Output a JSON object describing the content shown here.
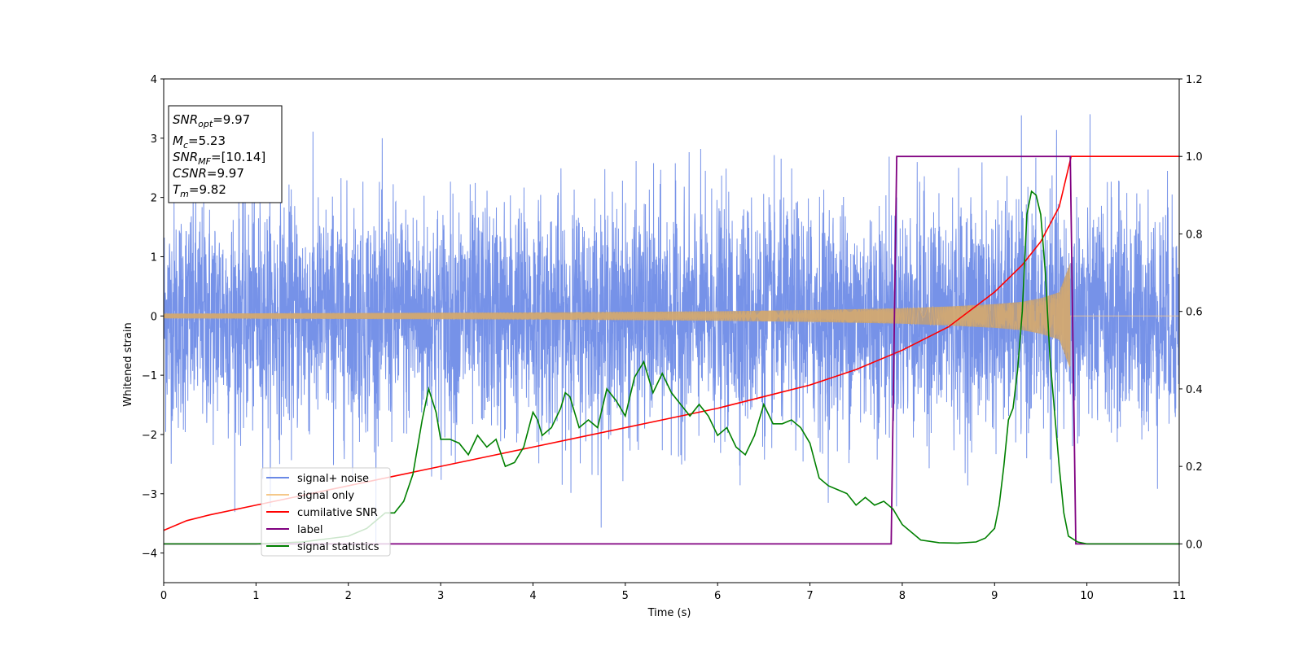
{
  "chart_data": {
    "type": "line",
    "xlabel": "Time (s)",
    "ylabel": "Whitened strain",
    "xlim": [
      0,
      11
    ],
    "ylim_left": [
      -4.5,
      4
    ],
    "ylim_right": [
      -0.1,
      1.2
    ],
    "x_ticks": [
      "0",
      "1",
      "2",
      "3",
      "4",
      "5",
      "6",
      "7",
      "8",
      "9",
      "10",
      "11"
    ],
    "y_left_ticks": [
      "−4",
      "−3",
      "−2",
      "−1",
      "0",
      "1",
      "2",
      "3",
      "4"
    ],
    "y_right_ticks": [
      "0.0",
      "0.2",
      "0.4",
      "0.6",
      "0.8",
      "1.0",
      "1.2"
    ],
    "annotation": {
      "snr_opt": {
        "label": "SNR",
        "sub": "opt",
        "value": "=9.97"
      },
      "mc": {
        "label": "M",
        "sub": "c",
        "value": "=5.23"
      },
      "snr_mf": {
        "label": "SNR",
        "sub": "MF",
        "value": "=[10.14]"
      },
      "csnr": {
        "label": "CSNR",
        "value": "=9.97"
      },
      "tm": {
        "label": "T",
        "sub": "m",
        "value": "=9.82"
      }
    },
    "series": [
      {
        "name": "signal+ noise",
        "axis": "left",
        "color": "#6a89e6",
        "description_values": {
          "mean": 0,
          "noise_sd": 0.95,
          "x_range": [
            0,
            11
          ]
        }
      },
      {
        "name": "signal only",
        "axis": "left",
        "color": "#f5c88a",
        "envelope": {
          "x": [
            0,
            1,
            2,
            3,
            4,
            5,
            6,
            7,
            8,
            8.5,
            9,
            9.3,
            9.5,
            9.7,
            9.82
          ],
          "amp": [
            0.04,
            0.045,
            0.05,
            0.055,
            0.06,
            0.07,
            0.08,
            0.1,
            0.13,
            0.16,
            0.2,
            0.24,
            0.3,
            0.4,
            0.9
          ]
        }
      },
      {
        "name": "cumilative SNR",
        "axis": "right",
        "color": "#ff0000",
        "x": [
          0,
          0.25,
          0.5,
          1,
          1.5,
          2,
          2.5,
          3,
          3.5,
          4,
          4.5,
          5,
          5.5,
          6,
          6.5,
          7,
          7.5,
          8,
          8.5,
          9,
          9.3,
          9.5,
          9.7,
          9.82,
          9.83,
          11
        ],
        "values": [
          0.035,
          0.06,
          0.075,
          0.1,
          0.125,
          0.15,
          0.175,
          0.2,
          0.225,
          0.25,
          0.275,
          0.3,
          0.325,
          0.35,
          0.38,
          0.41,
          0.45,
          0.5,
          0.56,
          0.65,
          0.72,
          0.78,
          0.87,
          0.99,
          1.0,
          1.0
        ]
      },
      {
        "name": "label",
        "axis": "right",
        "color": "#800080",
        "x": [
          0,
          7.88,
          7.94,
          9.82,
          9.88,
          11
        ],
        "values": [
          0,
          0,
          1,
          1,
          0,
          0
        ]
      },
      {
        "name": "signal statistics",
        "axis": "right",
        "color": "#008000",
        "x": [
          0,
          0.5,
          1,
          1.5,
          2,
          2.2,
          2.4,
          2.5,
          2.6,
          2.7,
          2.8,
          2.87,
          2.95,
          3.0,
          3.1,
          3.2,
          3.3,
          3.4,
          3.5,
          3.6,
          3.7,
          3.8,
          3.9,
          4.0,
          4.05,
          4.1,
          4.2,
          4.3,
          4.35,
          4.4,
          4.5,
          4.6,
          4.7,
          4.8,
          4.9,
          5.0,
          5.1,
          5.2,
          5.3,
          5.4,
          5.5,
          5.6,
          5.7,
          5.8,
          5.9,
          6.0,
          6.1,
          6.2,
          6.3,
          6.4,
          6.5,
          6.6,
          6.7,
          6.8,
          6.9,
          7.0,
          7.1,
          7.2,
          7.3,
          7.4,
          7.5,
          7.6,
          7.7,
          7.8,
          7.9,
          8.0,
          8.2,
          8.4,
          8.6,
          8.8,
          8.9,
          9.0,
          9.05,
          9.1,
          9.15,
          9.2,
          9.25,
          9.3,
          9.35,
          9.4,
          9.45,
          9.5,
          9.55,
          9.6,
          9.7,
          9.75,
          9.8,
          9.9,
          10,
          11
        ],
        "values": [
          0,
          0,
          0,
          0.005,
          0.02,
          0.04,
          0.08,
          0.08,
          0.11,
          0.18,
          0.32,
          0.4,
          0.34,
          0.27,
          0.27,
          0.26,
          0.23,
          0.28,
          0.25,
          0.27,
          0.2,
          0.21,
          0.25,
          0.34,
          0.32,
          0.28,
          0.3,
          0.35,
          0.39,
          0.38,
          0.3,
          0.32,
          0.3,
          0.4,
          0.37,
          0.33,
          0.43,
          0.47,
          0.39,
          0.44,
          0.39,
          0.36,
          0.33,
          0.36,
          0.33,
          0.28,
          0.3,
          0.25,
          0.23,
          0.28,
          0.36,
          0.31,
          0.31,
          0.32,
          0.3,
          0.26,
          0.17,
          0.15,
          0.14,
          0.13,
          0.1,
          0.12,
          0.1,
          0.11,
          0.09,
          0.05,
          0.01,
          0.003,
          0.002,
          0.005,
          0.015,
          0.04,
          0.1,
          0.2,
          0.32,
          0.35,
          0.45,
          0.6,
          0.85,
          0.91,
          0.9,
          0.85,
          0.7,
          0.48,
          0.2,
          0.08,
          0.02,
          0.005,
          0,
          0
        ]
      }
    ],
    "legend": {
      "position": "lower-left",
      "entries": [
        "signal+ noise",
        "signal only",
        "cumilative SNR",
        "label",
        "signal statistics"
      ]
    }
  }
}
